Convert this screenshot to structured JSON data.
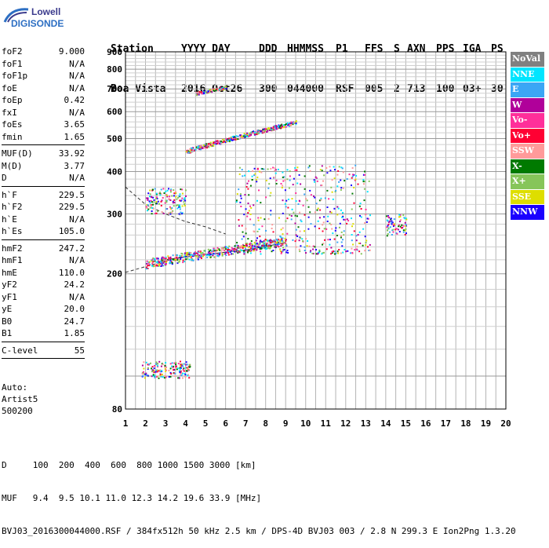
{
  "logo": {
    "line1": "Lowell",
    "line2": "DIGISONDE"
  },
  "header": {
    "labels": [
      "Station",
      "YYYY DAY",
      "DDD",
      "HHMMSS",
      "P1",
      "FFS",
      "S",
      "AXN",
      "PPS",
      "IGA",
      "PS"
    ],
    "values": [
      "Boa Vista",
      "2016 Oct26",
      "300",
      "044000",
      "RSF",
      "005",
      "2",
      "713",
      "100",
      "03+",
      "30"
    ]
  },
  "params": {
    "group1": [
      [
        "foF2",
        "9.000"
      ],
      [
        "foF1",
        "N/A"
      ],
      [
        "foF1p",
        "N/A"
      ],
      [
        "foE",
        "N/A"
      ],
      [
        "foEp",
        "0.42"
      ],
      [
        "fxI",
        "N/A"
      ],
      [
        "foEs",
        "3.65"
      ],
      [
        "fmin",
        "1.65"
      ]
    ],
    "group2": [
      [
        "MUF(D)",
        "33.92"
      ],
      [
        "M(D)",
        "3.77"
      ],
      [
        "D",
        "N/A"
      ]
    ],
    "group3": [
      [
        "h`F",
        "229.5"
      ],
      [
        "h`F2",
        "229.5"
      ],
      [
        "h`E",
        "N/A"
      ],
      [
        "h`Es",
        "105.0"
      ]
    ],
    "group4": [
      [
        "hmF2",
        "247.2"
      ],
      [
        "hmF1",
        "N/A"
      ],
      [
        "hmE",
        "110.0"
      ],
      [
        "yF2",
        "24.2"
      ],
      [
        "yF1",
        "N/A"
      ],
      [
        "yE",
        "20.0"
      ],
      [
        "B0",
        "24.7"
      ],
      [
        "B1",
        "1.85"
      ]
    ],
    "group5": [
      [
        "C-level",
        "55"
      ]
    ]
  },
  "auto": {
    "line1": "Auto:",
    "line2": "Artist5",
    "line3": "500200"
  },
  "legend": [
    {
      "label": "NoVal",
      "color": "#808080"
    },
    {
      "label": "NNE",
      "color": "#00e5ff"
    },
    {
      "label": "E",
      "color": "#3ba6f5"
    },
    {
      "label": "W",
      "color": "#b0009a"
    },
    {
      "label": "Vo-",
      "color": "#ff2f9a"
    },
    {
      "label": "Vo+",
      "color": "#ff0033"
    },
    {
      "label": "SSW",
      "color": "#ff9a9a"
    },
    {
      "label": "X-",
      "color": "#007a00"
    },
    {
      "label": "X+",
      "color": "#86c55a"
    },
    {
      "label": "SSE",
      "color": "#dede00"
    },
    {
      "label": "NNW",
      "color": "#1a00ff"
    }
  ],
  "bottom": {
    "line1": "D     100  200  400  600  800 1000 1500 3000 [km]",
    "line2": "MUF   9.4  9.5 10.1 11.0 12.3 14.2 19.6 33.9 [MHz]",
    "line3": "BVJ03_2016300044000.RSF / 384fx512h 50 kHz 2.5 km / DPS-4D BVJ03 003 / 2.8 N 299.3 E Ion2Png 1.3.20"
  },
  "chart_data": {
    "type": "scatter",
    "title": "",
    "xlabel": "",
    "ylabel": "",
    "xlim": [
      1,
      20
    ],
    "ylim": [
      80,
      900
    ],
    "y_scale": "log",
    "xticks": [
      1,
      2,
      3,
      4,
      5,
      6,
      7,
      8,
      9,
      10,
      11,
      12,
      13,
      14,
      15,
      16,
      17,
      18,
      19,
      20
    ],
    "yticks": [
      80,
      200,
      300,
      400,
      500,
      600,
      700,
      800,
      900
    ],
    "grid": true,
    "traces": [
      {
        "name": "Es layer echo",
        "x_range": [
          1.8,
          4.2
        ],
        "y_center": 105,
        "y_spread": 6
      },
      {
        "name": "F layer O-trace",
        "x_range": [
          2.0,
          9.0
        ],
        "y_start": 215,
        "y_end": 250
      },
      {
        "name": "F layer spread echoes",
        "x_range": [
          6.5,
          13.2
        ],
        "y_low": 230,
        "y_high": 420
      },
      {
        "name": "second hop",
        "x_range": [
          4.0,
          9.5
        ],
        "y_start": 460,
        "y_end": 560
      },
      {
        "name": "third hop",
        "x_range": [
          4.5,
          6.0
        ],
        "y_start": 680,
        "y_end": 710
      },
      {
        "name": "low echoes cluster",
        "x_range": [
          2.0,
          4.0
        ],
        "y_center": 330,
        "y_spread": 30
      },
      {
        "name": "blue cluster",
        "x_range": [
          14.0,
          15.0
        ],
        "y_center": 280,
        "y_spread": 20
      }
    ],
    "profile_lines": [
      {
        "name": "upper dashed",
        "points": [
          [
            1,
            360
          ],
          [
            2,
            320
          ],
          [
            3,
            300
          ],
          [
            4,
            285
          ],
          [
            5,
            275
          ],
          [
            6,
            262
          ]
        ]
      },
      {
        "name": "lower dashed",
        "points": [
          [
            1,
            202
          ],
          [
            2,
            210
          ],
          [
            3,
            218
          ],
          [
            4,
            226
          ],
          [
            5,
            232
          ]
        ]
      },
      {
        "name": "solid profile",
        "points": [
          [
            3,
            220
          ],
          [
            5,
            228
          ],
          [
            7,
            235
          ],
          [
            9,
            247
          ]
        ]
      }
    ]
  }
}
